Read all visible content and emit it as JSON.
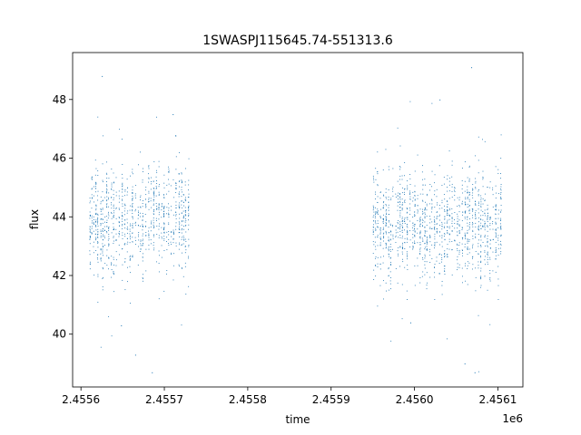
{
  "chart_data": {
    "type": "scatter",
    "title": "1SWASPJ115645.74-551313.6",
    "xlabel": "time",
    "ylabel": "flux",
    "x_offset_label": "1e6",
    "xlim": [
      2455590,
      2456130
    ],
    "ylim": [
      38.2,
      49.6
    ],
    "x_ticks": [
      2455600,
      2455700,
      2455800,
      2455900,
      2456000,
      2456100
    ],
    "x_tick_labels": [
      "2.4556",
      "2.4557",
      "2.4558",
      "2.4559",
      "2.4560",
      "2.4561"
    ],
    "y_ticks": [
      40,
      42,
      44,
      46,
      48
    ],
    "y_tick_labels": [
      "40",
      "42",
      "44",
      "46",
      "48"
    ],
    "grid": false,
    "legend": "none",
    "marker_color": "#1f77b4",
    "series": [
      {
        "observing_segments": [
          {
            "x_range": [
              2455610,
              2455730
            ],
            "flux_center": 43.9,
            "flux_spread": 1.1
          },
          {
            "x_range": [
              2455950,
              2456105
            ],
            "flux_center": 43.7,
            "flux_spread": 1.1
          }
        ],
        "notable_points": [
          {
            "x": 2455625,
            "y": 48.8
          },
          {
            "x": 2455648,
            "y": 40.3
          },
          {
            "x": 2455665,
            "y": 39.3
          },
          {
            "x": 2455685,
            "y": 38.7
          },
          {
            "x": 2455710,
            "y": 47.5
          },
          {
            "x": 2455995,
            "y": 40.4
          },
          {
            "x": 2456030,
            "y": 48.0
          },
          {
            "x": 2456060,
            "y": 39.0
          },
          {
            "x": 2456068,
            "y": 49.1
          },
          {
            "x": 2456072,
            "y": 38.7
          }
        ]
      }
    ]
  }
}
